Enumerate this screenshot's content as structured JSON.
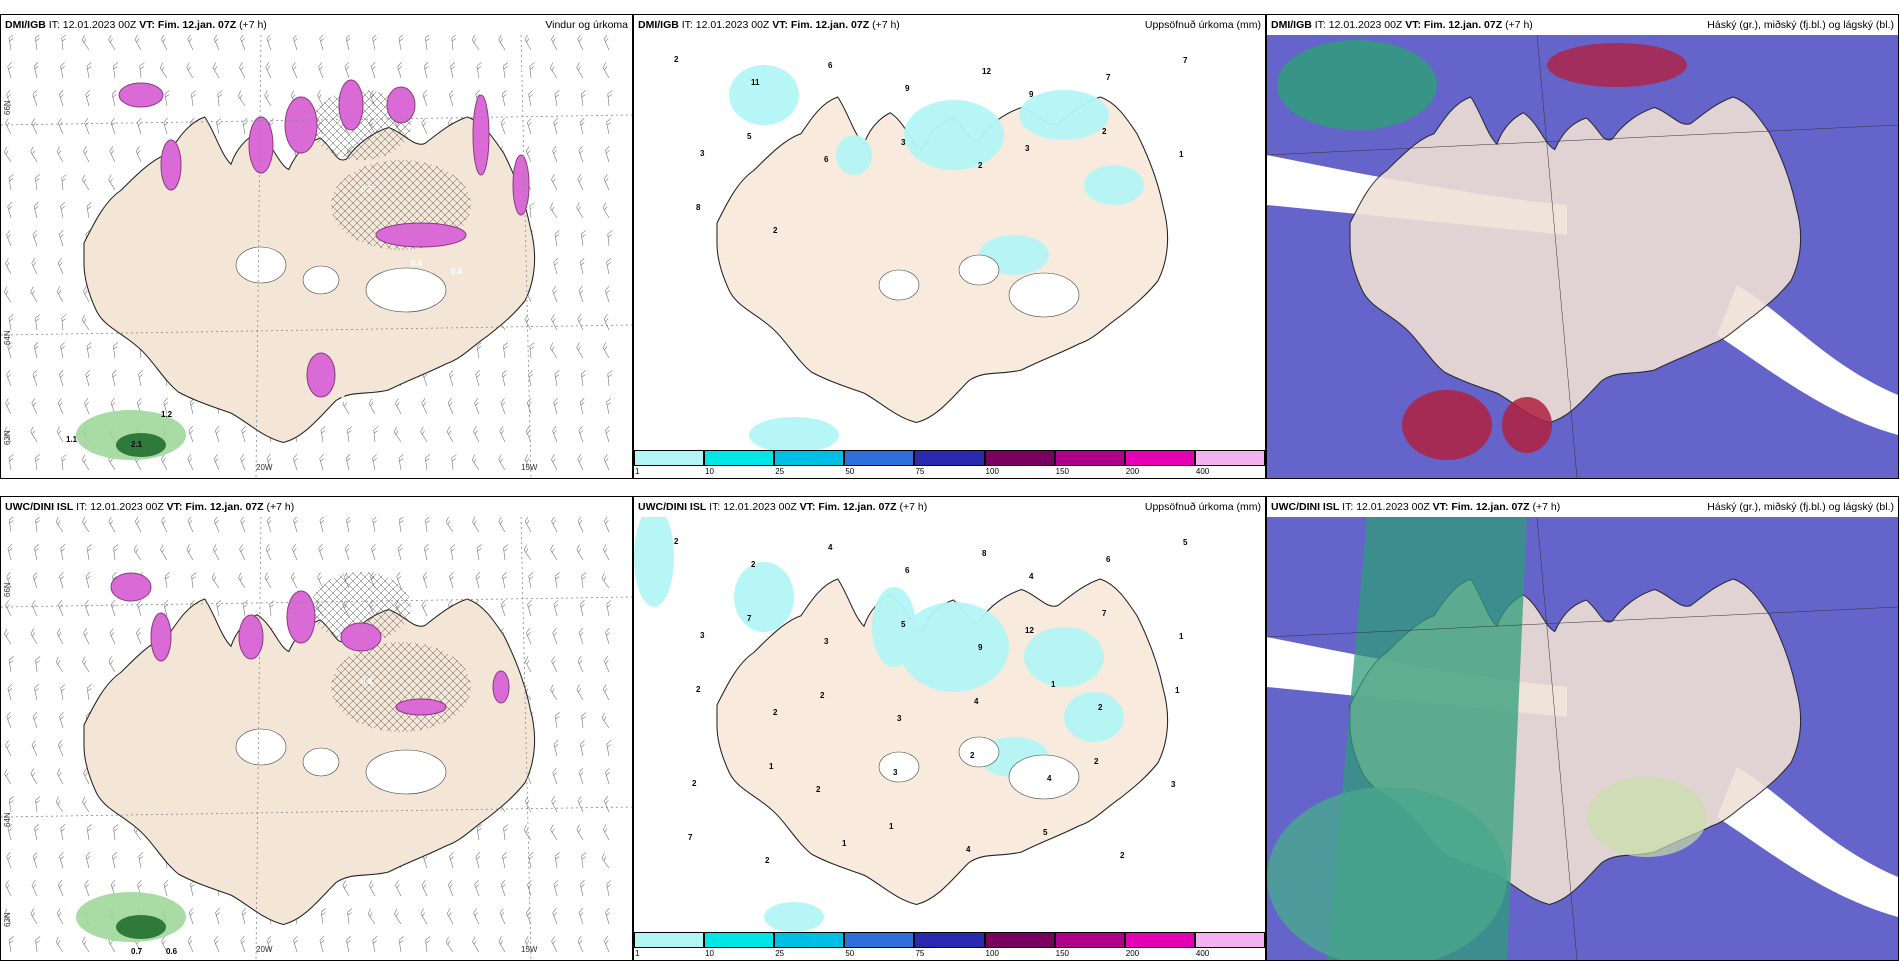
{
  "common": {
    "it_label": "IT:",
    "it_value": "12.01.2023 00Z",
    "vt_label": "VT: Fim. 12.jan. 07Z",
    "lead": "(+7 h)"
  },
  "panels": [
    {
      "model": "DMI/IGB",
      "right": "Vindur og úrkoma",
      "kind": "wind"
    },
    {
      "model": "DMI/IGB",
      "right": "Uppsöfnuð úrkoma (mm)",
      "kind": "accum"
    },
    {
      "model": "DMI/IGB",
      "right": "Háský (gr.), miðský (fj.bl.) og lágský (bl.)",
      "kind": "cloud"
    },
    {
      "model": "UWC/DINI ISL",
      "right": "",
      "kind": "wind"
    },
    {
      "model": "UWC/DINI ISL",
      "right": "Uppsöfnuð úrkoma (mm)",
      "kind": "accum"
    },
    {
      "model": "UWC/DINI ISL",
      "right": "Háský (gr.), miðský (fj.bl.) og lágský (bl.)",
      "kind": "cloud"
    }
  ],
  "wind_ticks": {
    "lon_20": "20W",
    "lon_15": "15W",
    "lat_66": "66N",
    "lat_64": "64N",
    "lat_63": "63N"
  },
  "wind_top_labels": [
    "0.4",
    "0.4",
    "0.7",
    "0.7",
    "0.6",
    "1.1",
    "2.1",
    "1.2"
  ],
  "wind_bottom_labels": [
    "0.7",
    "0.6",
    "0.8"
  ],
  "accum_scale": {
    "labels": [
      "1",
      "10",
      "25",
      "50",
      "75",
      "100",
      "150",
      "200",
      "400"
    ],
    "colors": [
      "#b3f5f5",
      "#00e5e5",
      "#00bfe5",
      "#2f6fdc",
      "#2a2ab0",
      "#7a0060",
      "#b0008a",
      "#e600b4",
      "#f2b3f0"
    ]
  },
  "accum_top_numbers": [
    "2",
    "11",
    "6",
    "9",
    "12",
    "9",
    "7",
    "7",
    "3",
    "5",
    "6",
    "3",
    "2",
    "3",
    "2",
    "1",
    "8",
    "2"
  ],
  "accum_bottom_numbers": [
    "2",
    "2",
    "4",
    "6",
    "8",
    "4",
    "6",
    "5",
    "3",
    "7",
    "3",
    "5",
    "9",
    "12",
    "7",
    "1",
    "2",
    "2",
    "2",
    "3",
    "4",
    "1",
    "2",
    "1",
    "2",
    "1",
    "2",
    "3",
    "2",
    "4",
    "2",
    "3",
    "7",
    "2",
    "1",
    "1",
    "4",
    "5",
    "2"
  ],
  "colors": {
    "land": "#f3e6d6",
    "sea": "#ffffff",
    "precip_pink": "#d96ad6",
    "precip_dark": "#8a3a80",
    "high_cloud": "#2f9c7a",
    "mid_cloud": "#4aa88d",
    "low_cloud": "#5c5cc8",
    "cloud_red": "#b02040"
  }
}
